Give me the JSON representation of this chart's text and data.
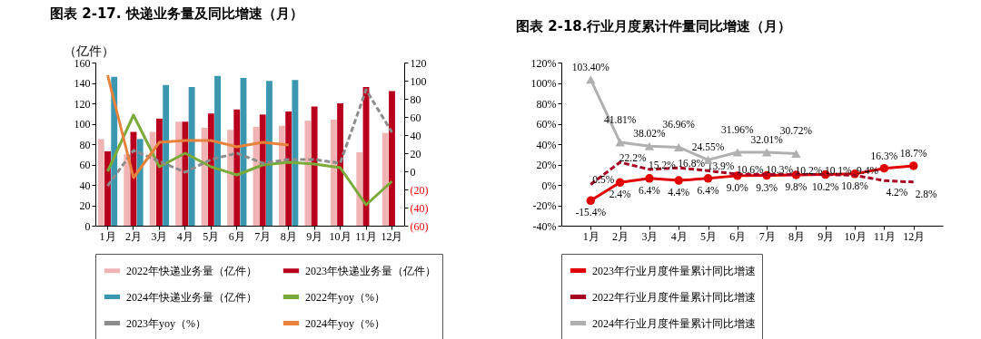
{
  "chart_data": [
    {
      "type": "bar",
      "title": "图表 2-17. 快递业务量及同比增速（月）",
      "ylabel": "（亿件）",
      "legend": "bottom",
      "categories": [
        "1月",
        "2月",
        "3月",
        "4月",
        "5月",
        "6月",
        "7月",
        "8月",
        "9月",
        "10月",
        "11月",
        "12月"
      ],
      "ylim": [
        0,
        160
      ],
      "yticks": [
        0,
        20,
        40,
        60,
        80,
        100,
        120,
        140,
        160
      ],
      "y2lim": [
        -60,
        120
      ],
      "y2ticks": [
        {
          "value": -60,
          "label": "(60)"
        },
        {
          "value": -40,
          "label": "(40)"
        },
        {
          "value": -20,
          "label": "(20)"
        },
        0,
        20,
        40,
        60,
        80,
        100,
        120
      ],
      "series": [
        {
          "name": "2022年快递业务量（亿件）",
          "type": "bar",
          "color": "#f0b4b4",
          "values": [
            85,
            70,
            92,
            102,
            96,
            94,
            97,
            98,
            103,
            104,
            72,
            91
          ]
        },
        {
          "name": "2023年快递业务量（亿件）",
          "type": "bar",
          "color": "#b8001e",
          "values": [
            73,
            92,
            105,
            102,
            110,
            114,
            109,
            112,
            117,
            120,
            136,
            132
          ]
        },
        {
          "name": "2024年快递业务量（亿件）",
          "type": "bar",
          "color": "#3b97b0",
          "values": [
            146,
            85,
            138,
            136,
            147,
            145,
            142,
            143,
            null,
            null,
            null,
            null
          ]
        },
        {
          "name": "2022年yoy（%）",
          "type": "line",
          "axis": "y2",
          "color": "#7aab3a",
          "line_style": "solid",
          "values": [
            0,
            62,
            5,
            20,
            5,
            -4,
            7,
            10,
            8,
            4,
            -37,
            -11
          ]
        },
        {
          "name": "2023年yoy（%）",
          "type": "line",
          "axis": "y2",
          "color": "#8c8c8c",
          "line_style": "dashed",
          "values": [
            -16,
            23,
            11,
            -1,
            13,
            20,
            9,
            13,
            13,
            9,
            90,
            43
          ]
        },
        {
          "name": "2024年yoy（%）",
          "type": "line",
          "axis": "y2",
          "color": "#e8823a",
          "line_style": "solid",
          "values": [
            106,
            -7,
            32,
            34,
            34,
            27,
            32,
            29,
            null,
            null,
            null,
            null
          ]
        }
      ]
    },
    {
      "type": "line",
      "title": "图表 2-18.行业月度累计件量同比增速（月）",
      "legend": "bottom",
      "categories": [
        "1月",
        "2月",
        "3月",
        "4月",
        "5月",
        "6月",
        "7月",
        "8月",
        "9月",
        "10月",
        "11月",
        "12月"
      ],
      "ylim": [
        -40,
        120
      ],
      "yticks": [
        {
          "value": -40,
          "label": "-40%"
        },
        {
          "value": -20,
          "label": "-20%"
        },
        {
          "value": 0,
          "label": "0%"
        },
        {
          "value": 20,
          "label": "20%"
        },
        {
          "value": 40,
          "label": "40%"
        },
        {
          "value": 60,
          "label": "60%"
        },
        {
          "value": 80,
          "label": "80%"
        },
        {
          "value": 100,
          "label": "100%"
        },
        {
          "value": 120,
          "label": "120%"
        }
      ],
      "series": [
        {
          "name": "2023年行业月度件量累计同比增速",
          "color": "#e00000",
          "marker": "circle",
          "line_style": "solid",
          "values": [
            -15.4,
            2.4,
            6.4,
            4.4,
            6.4,
            9.0,
            9.3,
            9.8,
            10.2,
            10.8,
            16.3,
            18.7
          ],
          "value_labels": [
            "-15.4%",
            "2.4%",
            "6.4%",
            "4.4%",
            "6.4%",
            "9.0%",
            "9.3%",
            "9.8%",
            "10.2%",
            "10.8%",
            "16.3%",
            "18.7%"
          ]
        },
        {
          "name": "2022年行业月度件量累计同比增速",
          "color": "#a50021",
          "marker": "none",
          "line_style": "dashed",
          "values": [
            0.5,
            22.2,
            15.2,
            16.8,
            13.9,
            10.6,
            10.3,
            10.2,
            10.1,
            9.4,
            4.2,
            2.8
          ],
          "value_labels": [
            "0.5%",
            "22.2%",
            "15.2%",
            "16.8%",
            "13.9%",
            "10.6%",
            "10.3%",
            "10.2%",
            "10.1%",
            "9.4%",
            "4.2%",
            "2.8%"
          ]
        },
        {
          "name": "2024年行业月度件量累计同比增速",
          "color": "#b0b0b0",
          "marker": "triangle",
          "line_style": "solid",
          "values": [
            103.4,
            41.81,
            38.02,
            36.96,
            24.55,
            31.96,
            32.01,
            30.72,
            null,
            null,
            null,
            null
          ],
          "value_labels": [
            "103.40%",
            "41.81%",
            "38.02%",
            "36.96%",
            "24.55%",
            "31.96%",
            "32.01%",
            "30.72%",
            null,
            null,
            null,
            null
          ]
        }
      ]
    }
  ]
}
